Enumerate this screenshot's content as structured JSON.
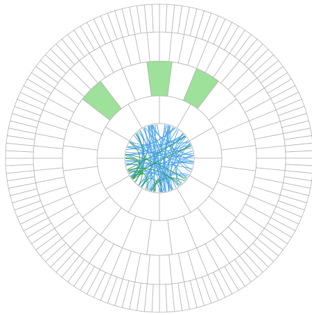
{
  "diagram": {
    "type": "radial-sunburst-with-chord-links",
    "rings": [
      {
        "name": "ring-1",
        "segments": 12
      },
      {
        "name": "ring-2",
        "segments": 24,
        "highlighted": [
          {
            "index": 0,
            "color": "#9ee19a"
          },
          {
            "index": 2,
            "color": "#9ee19a"
          },
          {
            "index": 21,
            "color": "#9ee19a"
          }
        ]
      },
      {
        "name": "ring-3",
        "segments": 64
      },
      {
        "name": "ring-4",
        "segments": 128
      }
    ],
    "link_series": [
      {
        "color": "#4aa3e8",
        "count": 70
      },
      {
        "color": "#2e9e3f",
        "count": 14
      }
    ],
    "colors": {
      "grid_stroke": "#b3b3b3",
      "highlight_fill": "#9ee19a",
      "link_blue": "#4aa3e8",
      "link_green": "#2e9e3f"
    }
  }
}
